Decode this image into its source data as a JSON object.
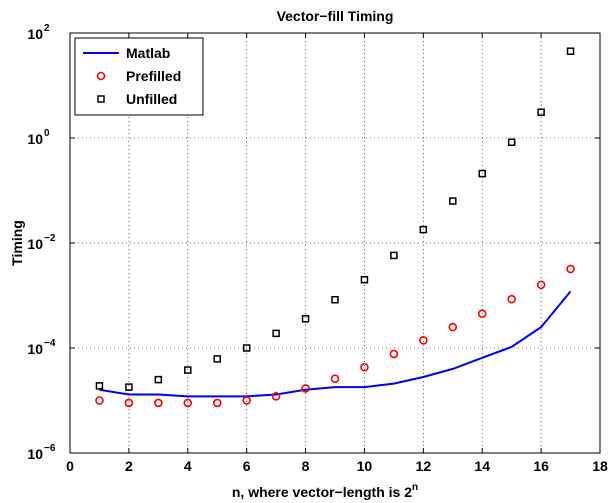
{
  "chart_data": {
    "type": "line",
    "title": "Vector−fill Timing",
    "xlabel": "n, where vector−length is 2",
    "xlabel_superscript": "n",
    "ylabel": "Timing",
    "xlim": [
      0,
      18
    ],
    "ylim": [
      1e-06,
      100
    ],
    "y_scale": "log",
    "x_ticks": [
      0,
      2,
      4,
      6,
      8,
      10,
      12,
      14,
      16,
      18
    ],
    "x_tick_labels": [
      "0",
      "2",
      "4",
      "6",
      "8",
      "10",
      "12",
      "14",
      "16",
      "18"
    ],
    "y_ticks": [
      1e-06,
      0.0001,
      0.01,
      1,
      100
    ],
    "y_tick_labels": [
      {
        "base": "10",
        "exp": "−6"
      },
      {
        "base": "10",
        "exp": "−4"
      },
      {
        "base": "10",
        "exp": "−2"
      },
      {
        "base": "10",
        "exp": "0"
      },
      {
        "base": "10",
        "exp": "2"
      }
    ],
    "grid": true,
    "legend_position": "top-left",
    "series": [
      {
        "name": "Matlab",
        "style": "line",
        "color": "#0000ff",
        "x": [
          1,
          2,
          3,
          4,
          5,
          6,
          7,
          8,
          9,
          10,
          11,
          12,
          13,
          14,
          15,
          16,
          17
        ],
        "y": [
          1.6e-05,
          1.3e-05,
          1.3e-05,
          1.2e-05,
          1.2e-05,
          1.2e-05,
          1.3e-05,
          1.6e-05,
          1.8e-05,
          1.8e-05,
          2.1e-05,
          2.8e-05,
          4e-05,
          6.5e-05,
          0.000105,
          0.00025,
          0.0012
        ]
      },
      {
        "name": "Prefilled",
        "style": "circle",
        "color": "#ff0000",
        "x": [
          1,
          2,
          3,
          4,
          5,
          6,
          7,
          8,
          9,
          10,
          11,
          12,
          13,
          14,
          15,
          16,
          17
        ],
        "y": [
          1e-05,
          9e-06,
          9e-06,
          9e-06,
          9e-06,
          1e-05,
          1.2e-05,
          1.7e-05,
          2.6e-05,
          4.3e-05,
          7.7e-05,
          0.00014,
          0.00025,
          0.00045,
          0.00085,
          0.0016,
          0.0032
        ]
      },
      {
        "name": "Unfilled",
        "style": "square",
        "color": "#000000",
        "x": [
          1,
          2,
          3,
          4,
          5,
          6,
          7,
          8,
          9,
          10,
          11,
          12,
          13,
          14,
          15,
          16,
          17
        ],
        "y": [
          1.9e-05,
          1.8e-05,
          2.5e-05,
          3.8e-05,
          6.2e-05,
          0.0001,
          0.00019,
          0.00036,
          0.00083,
          0.002,
          0.0058,
          0.018,
          0.063,
          0.21,
          0.83,
          3.1,
          45
        ]
      }
    ]
  }
}
